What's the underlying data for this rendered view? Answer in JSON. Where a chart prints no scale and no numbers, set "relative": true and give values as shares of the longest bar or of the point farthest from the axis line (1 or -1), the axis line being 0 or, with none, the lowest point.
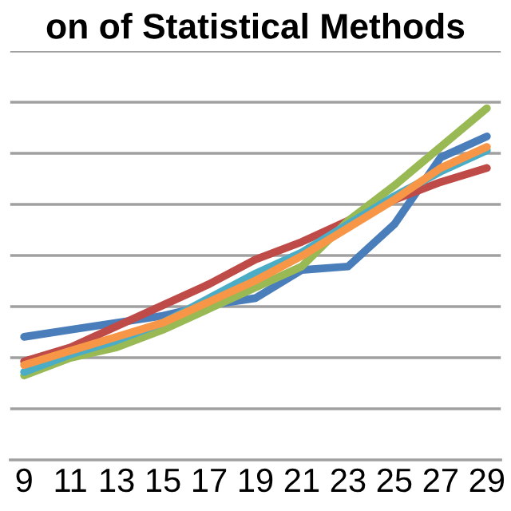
{
  "chart_data": {
    "type": "line",
    "title": "on of Statistical Methods",
    "relative": true,
    "grid": "y",
    "marker": "none",
    "line_style": "solid",
    "categories": [
      "9",
      "11",
      "13",
      "15",
      "17",
      "19",
      "21",
      "23",
      "25",
      "27",
      "29"
    ],
    "series": [
      {
        "color": "#4a7ebb",
        "values": [
          0.35,
          0.37,
          0.39,
          0.41,
          0.44,
          0.46,
          0.54,
          0.55,
          0.67,
          0.86,
          0.92
        ]
      },
      {
        "color": "#be4b48",
        "values": [
          0.28,
          0.32,
          0.38,
          0.44,
          0.5,
          0.57,
          0.62,
          0.68,
          0.74,
          0.79,
          0.83
        ]
      },
      {
        "color": "#98b954",
        "values": [
          0.24,
          0.29,
          0.32,
          0.37,
          0.43,
          0.49,
          0.55,
          0.68,
          0.78,
          0.89,
          1
        ]
      },
      {
        "color": "#4bacc6",
        "values": [
          0.25,
          0.3,
          0.34,
          0.39,
          0.46,
          0.53,
          0.59,
          0.67,
          0.75,
          0.82,
          0.88
        ]
      },
      {
        "color": "#f79646",
        "values": [
          0.27,
          0.31,
          0.35,
          0.39,
          0.45,
          0.51,
          0.58,
          0.66,
          0.74,
          0.83,
          0.89
        ]
      }
    ]
  }
}
